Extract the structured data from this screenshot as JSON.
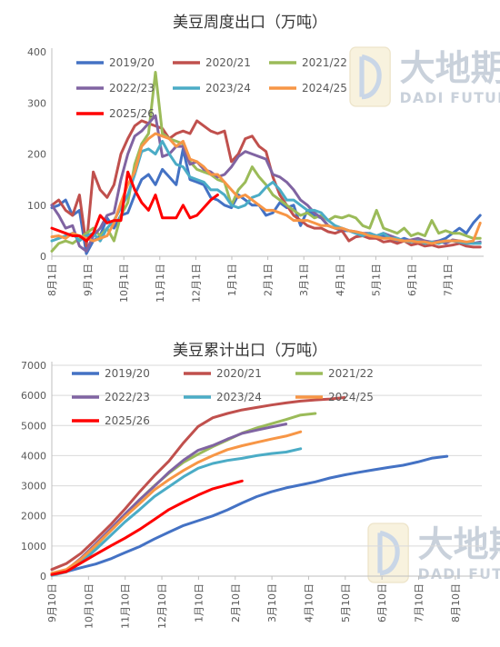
{
  "chart_data": [
    {
      "type": "line",
      "title": "美豆周度出口（万吨）",
      "xlabel": "",
      "ylabel": "",
      "ylim": [
        0,
        400
      ],
      "yticks": [
        0,
        100,
        200,
        300,
        400
      ],
      "x_tick_labels": [
        "8月1日",
        "9月1日",
        "10月1日",
        "11月1日",
        "12月1日",
        "1月1日",
        "2月1日",
        "3月1日",
        "4月1日",
        "5月1日",
        "6月1日",
        "7月1日"
      ],
      "grid": false,
      "legend_position": "top",
      "series": [
        {
          "name": "2019/20",
          "color": "#4472c4",
          "values": [
            95,
            100,
            110,
            80,
            90,
            5,
            30,
            40,
            75,
            55,
            80,
            85,
            120,
            150,
            160,
            140,
            170,
            155,
            140,
            210,
            150,
            145,
            140,
            115,
            110,
            100,
            95,
            120,
            110,
            100,
            100,
            80,
            85,
            105,
            95,
            100,
            60,
            90,
            80,
            75,
            60,
            55,
            50,
            50,
            45,
            40,
            38,
            35,
            40,
            35,
            30,
            35,
            30,
            28,
            30,
            25,
            30,
            35,
            45,
            55,
            45,
            65,
            80
          ]
        },
        {
          "name": "2020/21",
          "color": "#c0504d",
          "values": [
            100,
            110,
            90,
            80,
            120,
            20,
            165,
            130,
            115,
            140,
            200,
            230,
            255,
            265,
            260,
            255,
            250,
            230,
            240,
            245,
            240,
            265,
            255,
            245,
            240,
            245,
            185,
            200,
            230,
            235,
            215,
            205,
            155,
            120,
            100,
            80,
            70,
            60,
            55,
            55,
            48,
            45,
            50,
            30,
            38,
            40,
            35,
            35,
            28,
            30,
            25,
            30,
            22,
            25,
            20,
            22,
            18,
            20,
            22,
            25,
            20,
            18,
            18
          ]
        },
        {
          "name": "2021/22",
          "color": "#9bbb59",
          "values": [
            10,
            25,
            30,
            25,
            35,
            45,
            55,
            40,
            55,
            30,
            80,
            105,
            180,
            220,
            240,
            360,
            240,
            230,
            225,
            220,
            185,
            170,
            165,
            160,
            150,
            145,
            100,
            130,
            145,
            175,
            155,
            140,
            120,
            110,
            100,
            90,
            80,
            85,
            75,
            80,
            70,
            78,
            75,
            80,
            75,
            60,
            55,
            90,
            55,
            50,
            45,
            55,
            40,
            45,
            40,
            70,
            45,
            50,
            45,
            45,
            40,
            35,
            35
          ]
        },
        {
          "name": "2022/23",
          "color": "#8064a2",
          "values": [
            100,
            80,
            55,
            60,
            20,
            10,
            40,
            55,
            80,
            85,
            150,
            200,
            235,
            245,
            260,
            275,
            195,
            200,
            215,
            215,
            180,
            185,
            170,
            165,
            155,
            160,
            175,
            195,
            205,
            200,
            195,
            190,
            160,
            155,
            145,
            130,
            110,
            100,
            85,
            75,
            60,
            55,
            55,
            50,
            48,
            45,
            45,
            40,
            45,
            40,
            35,
            30,
            32,
            35,
            30,
            28,
            30,
            25,
            32,
            30,
            28,
            25,
            28
          ]
        },
        {
          "name": "2023/24",
          "color": "#4bacc6",
          "values": [
            30,
            35,
            40,
            45,
            30,
            40,
            45,
            30,
            55,
            70,
            95,
            120,
            160,
            205,
            210,
            200,
            225,
            200,
            180,
            175,
            155,
            150,
            145,
            130,
            130,
            120,
            100,
            95,
            100,
            115,
            120,
            135,
            145,
            130,
            110,
            110,
            100,
            90,
            90,
            85,
            70,
            60,
            55,
            50,
            45,
            40,
            45,
            40,
            45,
            35,
            35,
            30,
            28,
            30,
            25,
            28,
            25,
            30,
            30,
            28,
            25,
            25,
            25
          ]
        },
        {
          "name": "2024/25",
          "color": "#f79646",
          "values": [
            38,
            40,
            35,
            45,
            40,
            35,
            30,
            35,
            40,
            65,
            105,
            140,
            165,
            215,
            230,
            240,
            235,
            230,
            215,
            225,
            190,
            185,
            175,
            160,
            160,
            145,
            130,
            115,
            120,
            110,
            100,
            90,
            90,
            85,
            80,
            70,
            70,
            70,
            65,
            60,
            60,
            55,
            55,
            50,
            48,
            45,
            40,
            38,
            35,
            35,
            32,
            30,
            30,
            28,
            28,
            25,
            28,
            30,
            30,
            30,
            28,
            30,
            65
          ]
        },
        {
          "name": "2025/26",
          "color": "#ff0000",
          "values": [
            55,
            50,
            45,
            40,
            40,
            30,
            45,
            80,
            65,
            70,
            70,
            165,
            130,
            105,
            90,
            120,
            75,
            75,
            75,
            100,
            75,
            80,
            95,
            110,
            120
          ]
        }
      ]
    },
    {
      "type": "line",
      "title": "美豆累计出口（万吨）",
      "xlabel": "",
      "ylabel": "",
      "ylim": [
        0,
        7000
      ],
      "yticks": [
        0,
        1000,
        2000,
        3000,
        4000,
        5000,
        6000,
        7000
      ],
      "x_tick_labels": [
        "9月10日",
        "10月10日",
        "11月10日",
        "12月10日",
        "1月10日",
        "2月10日",
        "3月10日",
        "4月10日",
        "5月10日",
        "6月10日",
        "7月10日",
        "8月10日"
      ],
      "grid": true,
      "legend_position": "top",
      "series": [
        {
          "name": "2019/20",
          "color": "#4472c4",
          "values": [
            60,
            150,
            280,
            400,
            570,
            780,
            980,
            1230,
            1460,
            1680,
            1840,
            2000,
            2200,
            2430,
            2640,
            2800,
            2930,
            3030,
            3130,
            3260,
            3360,
            3450,
            3530,
            3610,
            3680,
            3790,
            3920,
            3980
          ]
        },
        {
          "name": "2020/21",
          "color": "#c0504d",
          "values": [
            220,
            420,
            760,
            1220,
            1700,
            2230,
            2800,
            3330,
            3820,
            4430,
            4970,
            5260,
            5400,
            5520,
            5600,
            5680,
            5750,
            5810,
            5850,
            5880,
            5930
          ]
        },
        {
          "name": "2021/22",
          "color": "#9bbb59",
          "values": [
            30,
            180,
            560,
            1000,
            1500,
            2030,
            2530,
            3000,
            3420,
            3780,
            4050,
            4300,
            4520,
            4750,
            4920,
            5060,
            5200,
            5350,
            5400
          ]
        },
        {
          "name": "2022/23",
          "color": "#8064a2",
          "values": [
            30,
            200,
            600,
            1070,
            1560,
            2060,
            2540,
            2980,
            3450,
            3850,
            4180,
            4340,
            4550,
            4740,
            4850,
            4950,
            5050
          ]
        },
        {
          "name": "2023/24",
          "color": "#4bacc6",
          "values": [
            20,
            140,
            450,
            880,
            1340,
            1800,
            2210,
            2640,
            2970,
            3300,
            3580,
            3740,
            3840,
            3910,
            4000,
            4070,
            4120,
            4230
          ]
        },
        {
          "name": "2024/25",
          "color": "#f79646",
          "values": [
            100,
            220,
            570,
            1020,
            1490,
            1970,
            2410,
            2860,
            3200,
            3510,
            3780,
            4000,
            4200,
            4330,
            4440,
            4550,
            4650,
            4790
          ]
        },
        {
          "name": "2025/26",
          "color": "#ff0000",
          "values": [
            50,
            150,
            440,
            720,
            1000,
            1260,
            1550,
            1880,
            2210,
            2460,
            2690,
            2900,
            3030,
            3160
          ]
        }
      ]
    }
  ],
  "watermark": {
    "brand_cn": "大地期货",
    "brand_en": "DADI FUTURES"
  }
}
